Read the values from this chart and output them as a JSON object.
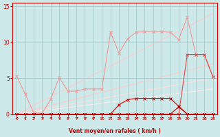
{
  "bg_color": "#cce8e8",
  "grid_color": "#aacccc",
  "xlabel": "Vent moyen/en rafales ( km/h )",
  "ylim": [
    0,
    15.5
  ],
  "xlim": [
    -0.5,
    23.5
  ],
  "yticks": [
    0,
    5,
    10,
    15
  ],
  "xticks": [
    0,
    1,
    2,
    3,
    4,
    5,
    6,
    7,
    8,
    9,
    10,
    11,
    12,
    13,
    14,
    15,
    16,
    17,
    18,
    19,
    20,
    21,
    22,
    23
  ],
  "line_dark": "#cc0000",
  "line_mid": "#dd4444",
  "line_light": "#ee9999",
  "line_vlight": "#ffbbbb",
  "trend_lines": [
    {
      "x": [
        0,
        23
      ],
      "y": [
        0.0,
        14.0
      ],
      "color": "#ffcccc"
    },
    {
      "x": [
        0,
        23
      ],
      "y": [
        0.0,
        7.0
      ],
      "color": "#ffcccc"
    },
    {
      "x": [
        0,
        23
      ],
      "y": [
        0.0,
        5.0
      ],
      "color": "#ffdddd"
    },
    {
      "x": [
        0,
        23
      ],
      "y": [
        0.0,
        3.5
      ],
      "color": "#ffeaea"
    }
  ],
  "upper_jagged_x": [
    0,
    1,
    2,
    3,
    4,
    5,
    6,
    7,
    8,
    9,
    10,
    11,
    12,
    13,
    14,
    15,
    16,
    17,
    18,
    19,
    20,
    21,
    22,
    23
  ],
  "upper_jagged_y": [
    5.3,
    2.8,
    0.2,
    0.1,
    2.1,
    5.1,
    3.2,
    3.2,
    3.5,
    3.5,
    3.5,
    11.4,
    8.5,
    10.5,
    11.4,
    11.5,
    11.5,
    11.5,
    11.4,
    10.4,
    13.5,
    8.3,
    8.3,
    5.2
  ],
  "mid_line_x": [
    0,
    1,
    2,
    3,
    4,
    5,
    6,
    7,
    8,
    9,
    10,
    11,
    12,
    13,
    14,
    15,
    16,
    17,
    18,
    19,
    20,
    21,
    22,
    23
  ],
  "mid_line_y": [
    0,
    0,
    0,
    0,
    0,
    0,
    0,
    0,
    0,
    0,
    0,
    0,
    0,
    0,
    0,
    0,
    0,
    0,
    0,
    0,
    8.3,
    8.3,
    8.3,
    5.2
  ],
  "dark_line1_x": [
    0,
    1,
    2,
    3,
    4,
    5,
    6,
    7,
    8,
    9,
    10,
    11,
    12,
    13,
    14,
    15,
    16,
    17,
    18,
    19,
    20,
    21,
    22,
    23
  ],
  "dark_line1_y": [
    0,
    0,
    0,
    0,
    0,
    0,
    0,
    0,
    0,
    0,
    0,
    0,
    0,
    0,
    0,
    0,
    0,
    0,
    0,
    0,
    0,
    0,
    0,
    0
  ],
  "dark_line2_x": [
    0,
    1,
    2,
    3,
    4,
    5,
    6,
    7,
    8,
    9,
    10,
    11,
    12,
    13,
    14,
    15,
    16,
    17,
    18,
    19,
    20,
    21,
    22,
    23
  ],
  "dark_line2_y": [
    0,
    0,
    0,
    0,
    0,
    0,
    0,
    0,
    0,
    0,
    0,
    0,
    1.3,
    2.0,
    2.2,
    2.2,
    2.2,
    2.2,
    2.2,
    1.1,
    0,
    0,
    0,
    0
  ],
  "dark_line3_x": [
    0,
    1,
    2,
    3,
    4,
    5,
    6,
    7,
    8,
    9,
    10,
    11,
    12,
    13,
    14,
    15,
    16,
    17,
    18,
    19,
    20,
    21,
    22,
    23
  ],
  "dark_line3_y": [
    0,
    0,
    0,
    0,
    0,
    0,
    0,
    0,
    0,
    0,
    0,
    0,
    0,
    0,
    0,
    0,
    0,
    0,
    0,
    1.0,
    0,
    0,
    0,
    0
  ],
  "arrows_x": [
    0,
    1,
    2,
    3,
    4,
    5,
    6,
    7,
    8,
    9,
    10,
    11,
    12,
    13,
    14,
    15,
    16,
    17,
    18,
    19,
    20,
    21,
    22,
    23
  ],
  "arrow_angles": [
    45,
    45,
    30,
    30,
    30,
    30,
    30,
    30,
    30,
    45,
    45,
    30,
    30,
    30,
    30,
    30,
    30,
    45,
    45,
    30,
    45,
    30,
    30,
    45
  ]
}
